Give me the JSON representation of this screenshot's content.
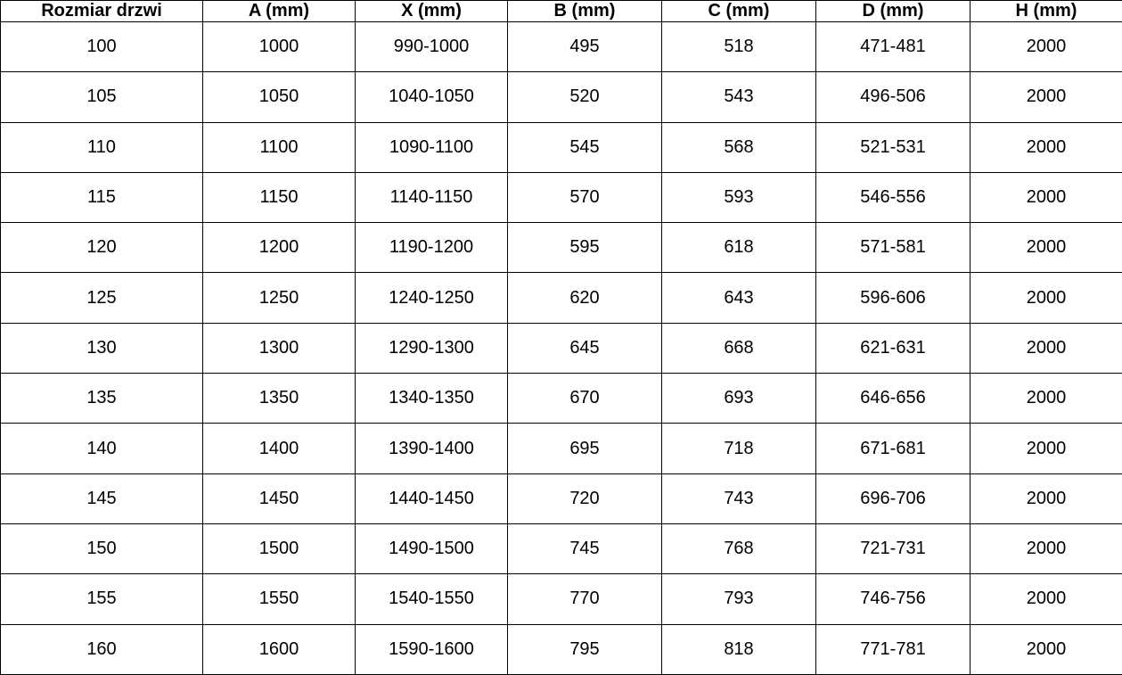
{
  "chart_data": {
    "type": "table",
    "columns": [
      "Rozmiar drzwi",
      "A (mm)",
      "X (mm)",
      "B (mm)",
      "C (mm)",
      "D (mm)",
      "H (mm)"
    ],
    "rows": [
      [
        "100",
        "1000",
        "990-1000",
        "495",
        "518",
        "471-481",
        "2000"
      ],
      [
        "105",
        "1050",
        "1040-1050",
        "520",
        "543",
        "496-506",
        "2000"
      ],
      [
        "110",
        "1100",
        "1090-1100",
        "545",
        "568",
        "521-531",
        "2000"
      ],
      [
        "115",
        "1150",
        "1140-1150",
        "570",
        "593",
        "546-556",
        "2000"
      ],
      [
        "120",
        "1200",
        "1190-1200",
        "595",
        "618",
        "571-581",
        "2000"
      ],
      [
        "125",
        "1250",
        "1240-1250",
        "620",
        "643",
        "596-606",
        "2000"
      ],
      [
        "130",
        "1300",
        "1290-1300",
        "645",
        "668",
        "621-631",
        "2000"
      ],
      [
        "135",
        "1350",
        "1340-1350",
        "670",
        "693",
        "646-656",
        "2000"
      ],
      [
        "140",
        "1400",
        "1390-1400",
        "695",
        "718",
        "671-681",
        "2000"
      ],
      [
        "145",
        "1450",
        "1440-1450",
        "720",
        "743",
        "696-706",
        "2000"
      ],
      [
        "150",
        "1500",
        "1490-1500",
        "745",
        "768",
        "721-731",
        "2000"
      ],
      [
        "155",
        "1550",
        "1540-1550",
        "770",
        "793",
        "746-756",
        "2000"
      ],
      [
        "160",
        "1600",
        "1590-1600",
        "795",
        "818",
        "771-781",
        "2000"
      ]
    ],
    "layout": {
      "grid": true,
      "border_color": "#000000",
      "text_color": "#000000",
      "background_color": "#ffffff",
      "header_bold": true
    }
  }
}
